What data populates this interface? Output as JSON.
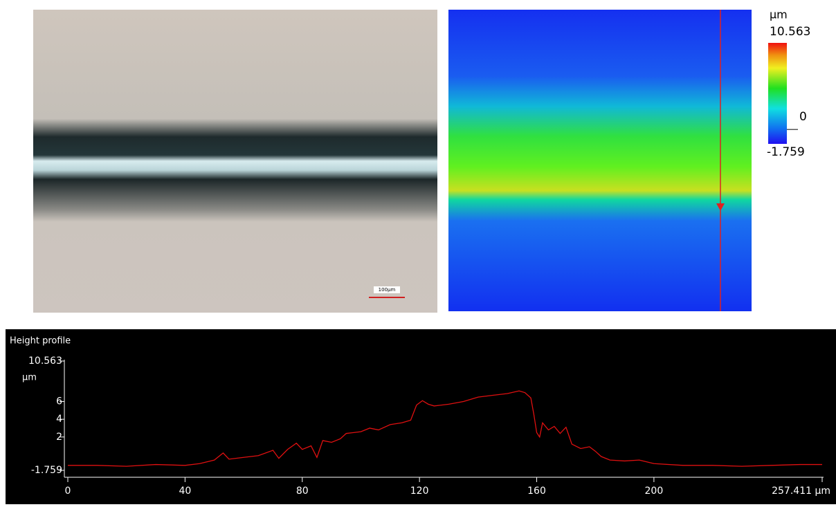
{
  "micrograph": {
    "scale_bar_label": "100µm"
  },
  "color_scale": {
    "unit": "µm",
    "max": 10.563,
    "zero": 0,
    "min": -1.759
  },
  "chart_data": {
    "type": "line",
    "title": "Height profile",
    "y_label": "µm",
    "xlim": [
      0,
      257.411
    ],
    "ylim": [
      -1.759,
      10.563
    ],
    "xticks": [
      0,
      40,
      80,
      120,
      160,
      200,
      {
        "value": 257.411,
        "label": "257.411 µm"
      }
    ],
    "yticks": [
      -1.759,
      2,
      4,
      6,
      10.563
    ],
    "series": [
      {
        "color": "#e01010",
        "x": [
          0,
          10,
          20,
          30,
          40,
          45,
          50,
          53,
          55,
          60,
          65,
          70,
          72,
          75,
          78,
          80,
          83,
          85,
          87,
          90,
          93,
          95,
          100,
          103,
          106,
          110,
          114,
          117,
          119,
          121,
          123,
          125,
          130,
          135,
          140,
          145,
          150,
          154,
          156,
          158,
          159,
          160,
          161,
          162,
          164,
          166,
          168,
          170,
          172,
          175,
          178,
          180,
          182,
          185,
          190,
          195,
          200,
          210,
          220,
          230,
          240,
          250,
          257.411
        ],
        "values": [
          -1.2,
          -1.2,
          -1.3,
          -1.1,
          -1.2,
          -1.0,
          -0.6,
          0.2,
          -0.5,
          -0.3,
          -0.1,
          0.5,
          -0.4,
          0.6,
          1.3,
          0.6,
          1.0,
          -0.3,
          1.6,
          1.4,
          1.8,
          2.4,
          2.6,
          3.0,
          2.8,
          3.4,
          3.6,
          3.9,
          5.6,
          6.1,
          5.7,
          5.5,
          5.7,
          6.0,
          6.5,
          6.7,
          6.9,
          7.2,
          7.0,
          6.4,
          4.6,
          2.5,
          2.0,
          3.6,
          2.8,
          3.2,
          2.4,
          3.1,
          1.2,
          0.7,
          0.9,
          0.4,
          -0.2,
          -0.6,
          -0.7,
          -0.6,
          -1.0,
          -1.2,
          -1.2,
          -1.3,
          -1.2,
          -1.1,
          -1.1
        ]
      }
    ]
  }
}
